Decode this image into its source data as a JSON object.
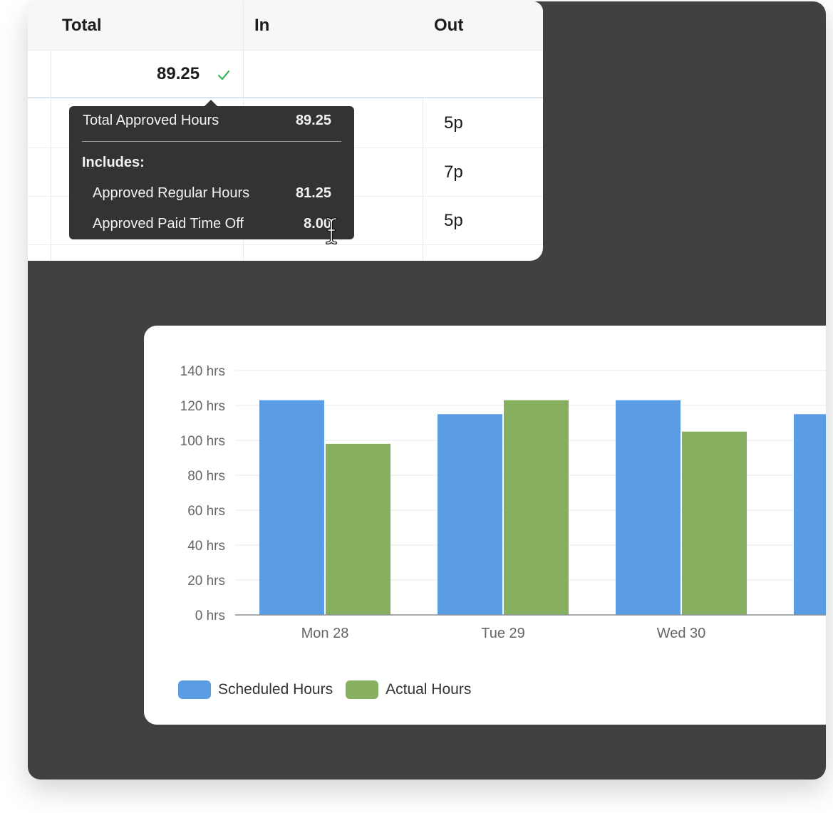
{
  "table": {
    "headers": {
      "total": "Total",
      "in": "In",
      "out": "Out"
    },
    "total_value": "89.25",
    "out_values": [
      "5p",
      "7p",
      "5p"
    ]
  },
  "tooltip": {
    "total_label": "Total Approved Hours",
    "total_value": "89.25",
    "includes_label": "Includes:",
    "regular_label": "Approved Regular Hours",
    "regular_value": "81.25",
    "pto_label": "Approved Paid Time Off",
    "pto_value": "8.00"
  },
  "colors": {
    "scheduled": "#5b9de4",
    "actual": "#86af5f",
    "check": "#3bb55d",
    "background_dark": "#414141"
  },
  "legend": {
    "scheduled": "Scheduled Hours",
    "actual": "Actual Hours"
  },
  "chart_data": {
    "type": "bar",
    "categories": [
      "Mon 28",
      "Tue 29",
      "Wed 30",
      ""
    ],
    "series": [
      {
        "name": "Scheduled Hours",
        "values": [
          123,
          115,
          123,
          115
        ]
      },
      {
        "name": "Actual Hours",
        "values": [
          98,
          123,
          105,
          null
        ]
      }
    ],
    "y_ticks": [
      "0 hrs",
      "20 hrs",
      "40 hrs",
      "60 hrs",
      "80 hrs",
      "100 hrs",
      "120 hrs",
      "140 hrs"
    ],
    "ylim": [
      0,
      140
    ],
    "grid": true,
    "legend_position": "bottom-left"
  }
}
